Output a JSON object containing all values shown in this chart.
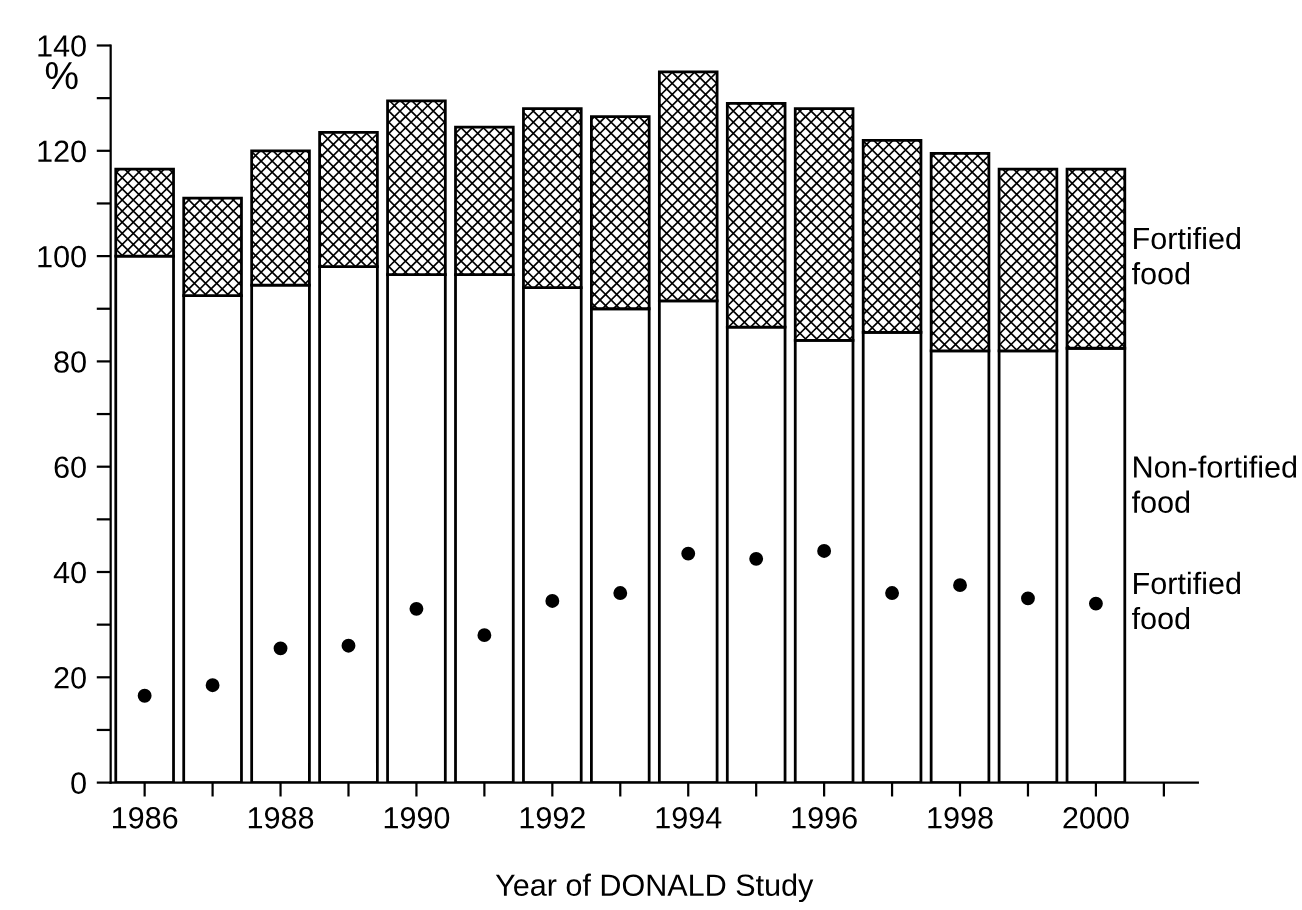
{
  "chart_data": {
    "type": "bar",
    "stacked": true,
    "ylabel": "%",
    "xlabel": "Year of DONALD Study",
    "x": [
      1986,
      1987,
      1988,
      1989,
      1990,
      1991,
      1992,
      1993,
      1994,
      1995,
      1996,
      1997,
      1998,
      1999,
      2000
    ],
    "series": [
      {
        "name": "Non-fortified food",
        "color": "#ffffff",
        "values": [
          100,
          92.5,
          94.5,
          98,
          96.5,
          96.5,
          94,
          90,
          91.5,
          86.5,
          84,
          85.5,
          82,
          82,
          82.5
        ]
      },
      {
        "name": "Fortified food",
        "color": "#000000",
        "values": [
          16.5,
          18.5,
          25.5,
          25.5,
          33,
          28,
          34,
          36.5,
          43.5,
          42.5,
          44,
          36.5,
          37.5,
          34.5,
          34
        ]
      },
      {
        "name": "Fortified food",
        "type": "scatter",
        "color": "#000000",
        "marker": "circle",
        "values": [
          16.5,
          18.5,
          25.5,
          26,
          33,
          28,
          34.5,
          36,
          43.5,
          42.5,
          44,
          36,
          37.5,
          35,
          34
        ]
      }
    ],
    "xlim": [
      1985.5,
      2001.5
    ],
    "xticks": [
      1986,
      {
        "value": 1987,
        "label": null
      },
      1988,
      {
        "value": 1989,
        "label": null
      },
      1990,
      {
        "value": 1991,
        "label": null
      },
      1992,
      {
        "value": 1993,
        "label": null
      },
      1994,
      {
        "value": 1995,
        "label": null
      },
      1996,
      {
        "value": 1997,
        "label": null
      },
      1998,
      {
        "value": 1999,
        "label": null
      },
      2000,
      {
        "value": 2001,
        "label": null
      }
    ],
    "ylim": [
      0,
      140
    ],
    "yticks": [
      0,
      {
        "value": 10,
        "label": null
      },
      20,
      {
        "value": 30,
        "label": null
      },
      40,
      {
        "value": 50,
        "label": null
      },
      60,
      {
        "value": 70,
        "label": null
      },
      80,
      {
        "value": 90,
        "label": null
      },
      100,
      {
        "value": 110,
        "label": null
      },
      120,
      {
        "value": 130,
        "label": null
      },
      140
    ],
    "grid": false,
    "legend": false
  }
}
